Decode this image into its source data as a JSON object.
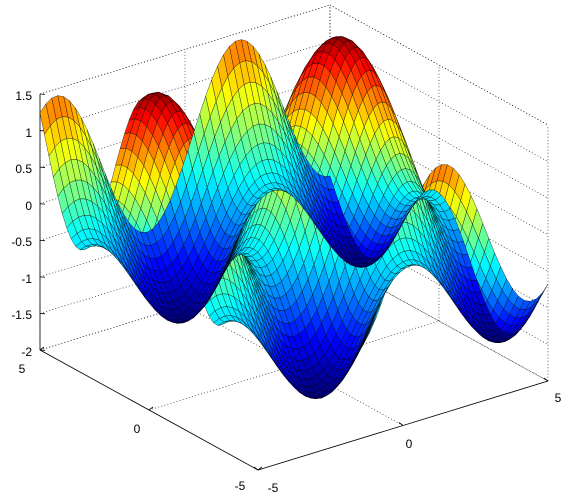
{
  "chart_data": {
    "type": "surface",
    "title": "",
    "xlabel": "",
    "ylabel": "",
    "zlabel": "",
    "x_range": [
      -5,
      5
    ],
    "y_range": [
      -5,
      5
    ],
    "zlim": [
      -2,
      1.5
    ],
    "grid": true,
    "colormap": "jet",
    "x_ticks": [
      "-5",
      "0",
      "5"
    ],
    "y_ticks": [
      "5",
      "0",
      "-5"
    ],
    "z_ticks": [
      "1.5",
      "1",
      "0.5",
      "0",
      "-0.5",
      "-1",
      "-1.5",
      "-2"
    ],
    "x_tick_values": [
      -5,
      0,
      5
    ],
    "y_tick_values": [
      5,
      0,
      -5
    ],
    "z_tick_values": [
      1.5,
      1,
      0.5,
      0,
      -0.5,
      -1,
      -1.5,
      -2
    ],
    "surface": "z = sin(x) + cos(y) + 0.3*sin(x + y), sampled on a 50 x 50 grid"
  }
}
